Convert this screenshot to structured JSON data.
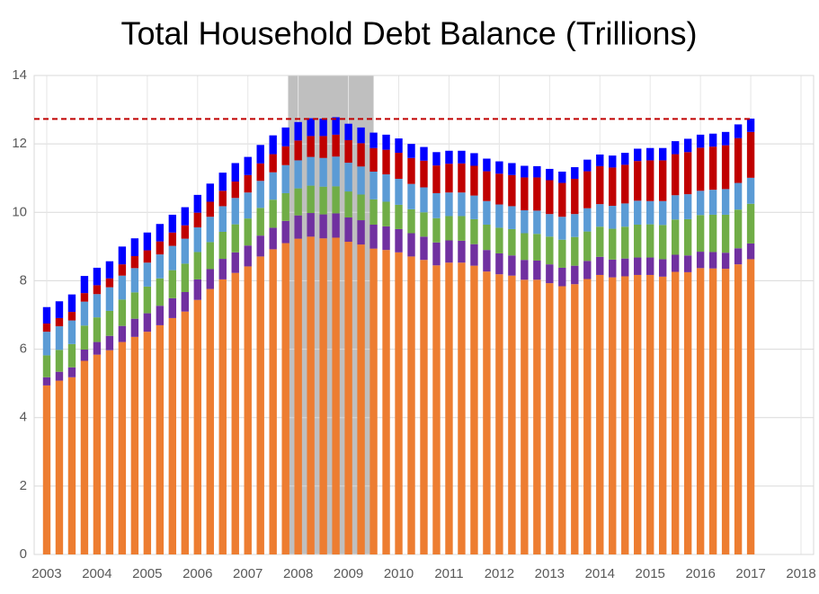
{
  "chart_data": {
    "type": "stacked_bar",
    "title": "Total Household Debt Balance (Trillions)",
    "x": [
      2003,
      2003.25,
      2003.5,
      2003.75,
      2004,
      2004.25,
      2004.5,
      2004.75,
      2005,
      2005.25,
      2005.5,
      2005.75,
      2006,
      2006.25,
      2006.5,
      2006.75,
      2007,
      2007.25,
      2007.5,
      2007.75,
      2008,
      2008.25,
      2008.5,
      2008.75,
      2009,
      2009.25,
      2009.5,
      2009.75,
      2010,
      2010.25,
      2010.5,
      2010.75,
      2011,
      2011.25,
      2011.5,
      2011.75,
      2012,
      2012.25,
      2012.5,
      2012.75,
      2013,
      2013.25,
      2013.5,
      2013.75,
      2014,
      2014.25,
      2014.5,
      2014.75,
      2015,
      2015.25,
      2015.5,
      2015.75,
      2016,
      2016.25,
      2016.5,
      2016.75,
      2017
    ],
    "series": [
      {
        "color": "#ed7d31",
        "values": [
          4.94,
          5.08,
          5.18,
          5.66,
          5.84,
          5.97,
          6.21,
          6.36,
          6.51,
          6.7,
          6.91,
          7.1,
          7.44,
          7.76,
          8.04,
          8.23,
          8.42,
          8.71,
          8.92,
          9.1,
          9.23,
          9.29,
          9.24,
          9.26,
          9.14,
          9.06,
          8.94,
          8.9,
          8.83,
          8.71,
          8.61,
          8.45,
          8.53,
          8.53,
          8.44,
          8.27,
          8.19,
          8.15,
          8.03,
          8.03,
          7.93,
          7.84,
          7.9,
          8.05,
          8.17,
          8.1,
          8.13,
          8.17,
          8.17,
          8.12,
          8.26,
          8.25,
          8.37,
          8.36,
          8.35,
          8.48,
          8.63
        ]
      },
      {
        "color": "#7030a0",
        "values": [
          0.24,
          0.26,
          0.29,
          0.33,
          0.37,
          0.42,
          0.47,
          0.53,
          0.54,
          0.57,
          0.58,
          0.57,
          0.6,
          0.58,
          0.6,
          0.6,
          0.61,
          0.61,
          0.63,
          0.65,
          0.68,
          0.69,
          0.7,
          0.71,
          0.71,
          0.71,
          0.7,
          0.69,
          0.68,
          0.68,
          0.68,
          0.67,
          0.65,
          0.64,
          0.63,
          0.63,
          0.61,
          0.59,
          0.58,
          0.56,
          0.55,
          0.54,
          0.54,
          0.53,
          0.53,
          0.52,
          0.52,
          0.51,
          0.51,
          0.51,
          0.5,
          0.49,
          0.48,
          0.48,
          0.47,
          0.47,
          0.46
        ]
      },
      {
        "color": "#70ad47",
        "values": [
          0.64,
          0.64,
          0.68,
          0.7,
          0.72,
          0.73,
          0.77,
          0.77,
          0.78,
          0.8,
          0.82,
          0.83,
          0.8,
          0.79,
          0.79,
          0.82,
          0.79,
          0.81,
          0.82,
          0.81,
          0.79,
          0.8,
          0.81,
          0.79,
          0.76,
          0.75,
          0.74,
          0.72,
          0.71,
          0.7,
          0.71,
          0.71,
          0.71,
          0.72,
          0.73,
          0.74,
          0.75,
          0.77,
          0.78,
          0.78,
          0.81,
          0.82,
          0.84,
          0.86,
          0.88,
          0.9,
          0.93,
          0.96,
          0.97,
          1.0,
          1.03,
          1.06,
          1.07,
          1.09,
          1.11,
          1.13,
          1.16
        ]
      },
      {
        "color": "#5b9bd5",
        "values": [
          0.69,
          0.69,
          0.69,
          0.7,
          0.68,
          0.69,
          0.7,
          0.71,
          0.7,
          0.7,
          0.71,
          0.73,
          0.72,
          0.74,
          0.75,
          0.77,
          0.76,
          0.79,
          0.8,
          0.82,
          0.82,
          0.84,
          0.84,
          0.87,
          0.84,
          0.82,
          0.81,
          0.8,
          0.76,
          0.74,
          0.73,
          0.73,
          0.69,
          0.69,
          0.69,
          0.69,
          0.68,
          0.67,
          0.67,
          0.68,
          0.66,
          0.67,
          0.67,
          0.68,
          0.66,
          0.67,
          0.68,
          0.7,
          0.68,
          0.7,
          0.71,
          0.73,
          0.71,
          0.73,
          0.75,
          0.78,
          0.76
        ]
      },
      {
        "color": "#c00000",
        "values": [
          0.24,
          0.24,
          0.25,
          0.25,
          0.26,
          0.26,
          0.33,
          0.35,
          0.36,
          0.38,
          0.39,
          0.39,
          0.43,
          0.44,
          0.45,
          0.48,
          0.51,
          0.51,
          0.53,
          0.55,
          0.58,
          0.61,
          0.64,
          0.64,
          0.66,
          0.68,
          0.69,
          0.72,
          0.76,
          0.76,
          0.78,
          0.81,
          0.84,
          0.85,
          0.87,
          0.87,
          0.9,
          0.91,
          0.96,
          0.97,
          0.99,
          0.99,
          1.03,
          1.08,
          1.11,
          1.12,
          1.13,
          1.16,
          1.19,
          1.19,
          1.2,
          1.23,
          1.26,
          1.26,
          1.28,
          1.31,
          1.34
        ]
      },
      {
        "color": "#0000ff",
        "values": [
          0.48,
          0.49,
          0.51,
          0.5,
          0.51,
          0.5,
          0.52,
          0.52,
          0.52,
          0.51,
          0.52,
          0.53,
          0.52,
          0.53,
          0.53,
          0.54,
          0.53,
          0.54,
          0.55,
          0.55,
          0.54,
          0.52,
          0.51,
          0.51,
          0.48,
          0.46,
          0.45,
          0.44,
          0.42,
          0.41,
          0.4,
          0.39,
          0.38,
          0.37,
          0.37,
          0.37,
          0.36,
          0.35,
          0.34,
          0.33,
          0.33,
          0.33,
          0.34,
          0.34,
          0.34,
          0.35,
          0.35,
          0.36,
          0.36,
          0.36,
          0.38,
          0.39,
          0.38,
          0.38,
          0.39,
          0.4,
          0.39
        ]
      }
    ],
    "xlim": [
      2002.75,
      2018.25
    ],
    "xticks": [
      2003,
      2004,
      2005,
      2006,
      2007,
      2008,
      2009,
      2010,
      2011,
      2012,
      2013,
      2014,
      2015,
      2016,
      2017,
      2018
    ],
    "ylim": [
      0,
      14
    ],
    "yticks": [
      0,
      2,
      4,
      6,
      8,
      10,
      12,
      14
    ],
    "grid": true,
    "shaded_region": {
      "x": [
        2007.8,
        2009.5
      ],
      "color": "#bfbfbf"
    },
    "reference_line": {
      "y": 12.73,
      "color": "#c00000"
    }
  }
}
